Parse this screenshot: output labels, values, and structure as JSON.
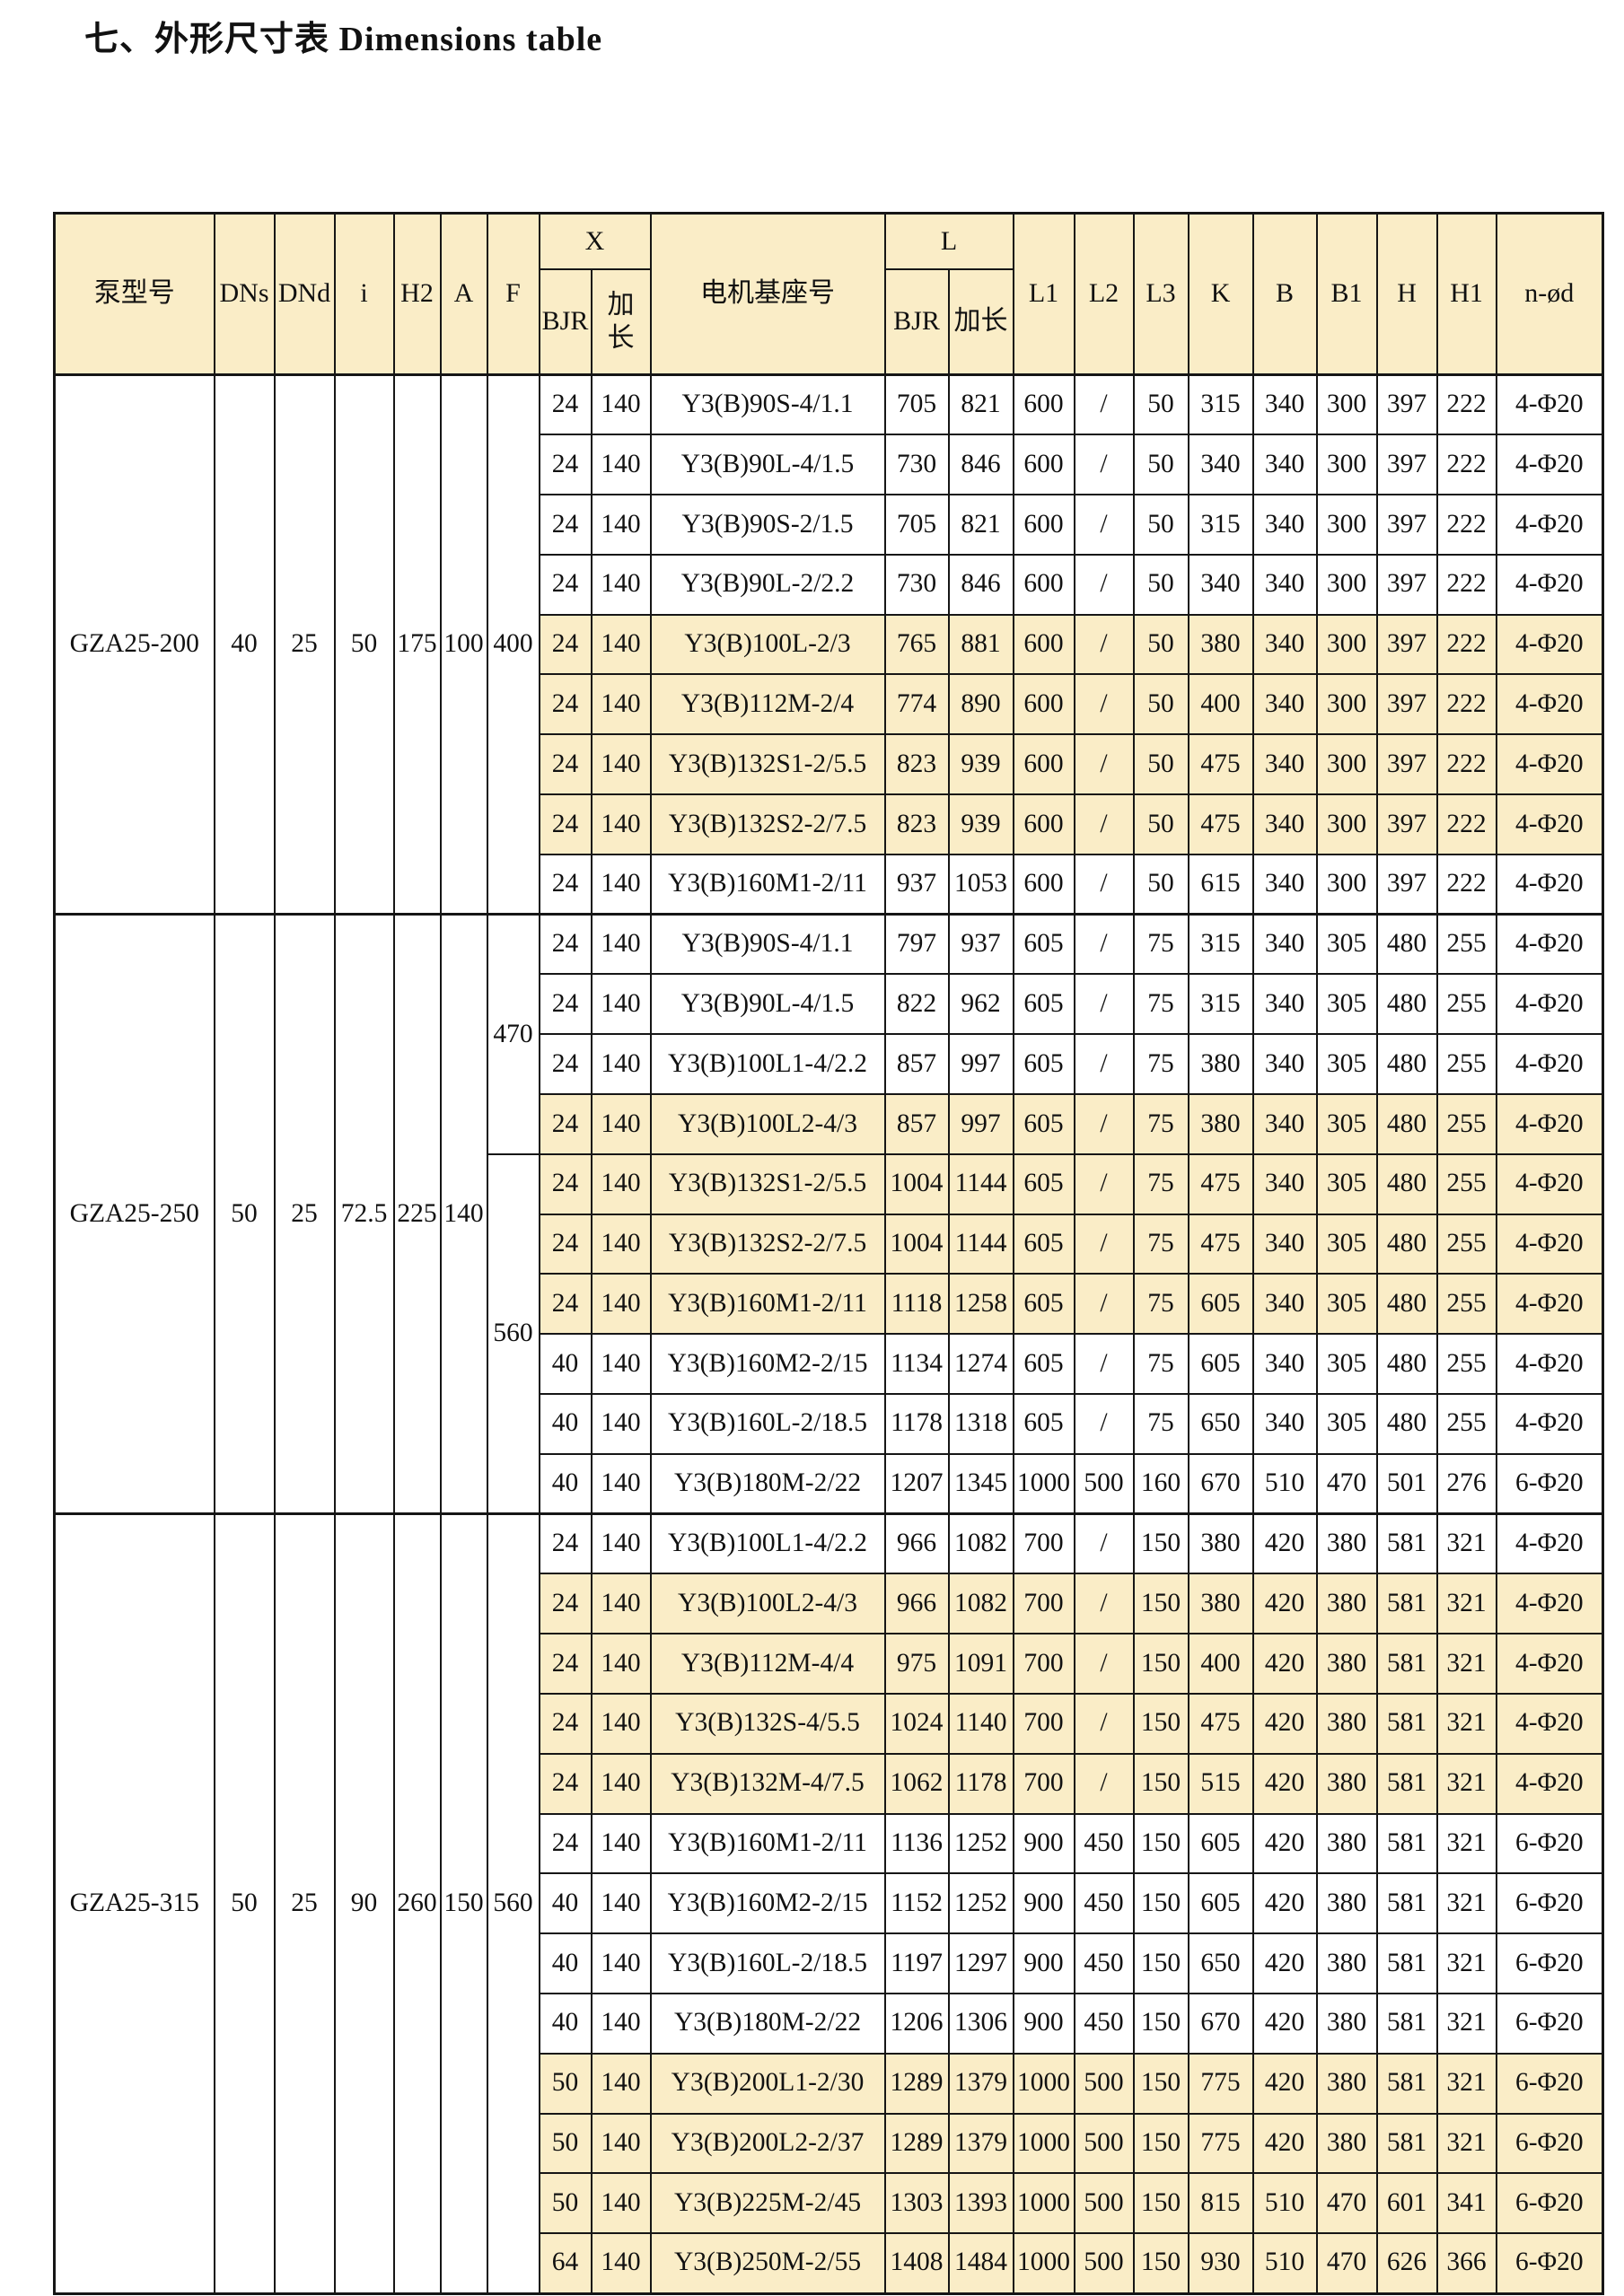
{
  "title": "七、外形尺寸表 Dimensions table",
  "colors": {
    "row_shade": "#FAEDC7",
    "header_bg": "#FAEDC7",
    "border": "#161616"
  },
  "table": {
    "headers": {
      "pump_model": "泵型号",
      "dns": "DNs",
      "dnd": "DNd",
      "i": "i",
      "h2": "H2",
      "a": "A",
      "f": "F",
      "x_group": "X",
      "bjr": "BJR",
      "jiachang": "加长",
      "motor_base": "电机基座号",
      "l_group": "L",
      "l1": "L1",
      "l2": "L2",
      "l3": "L3",
      "k": "K",
      "b": "B",
      "b1": "B1",
      "h": "H",
      "h1": "H1",
      "n_od": "n-ød"
    },
    "groups": [
      {
        "model": "GZA25-200",
        "dns": "40",
        "dnd": "25",
        "i": "50",
        "h2": "175",
        "a": "100",
        "f_cells": [
          {
            "value": "400",
            "span": 9
          }
        ],
        "rows": [
          {
            "x_bjr": "24",
            "x_ext": "140",
            "base": "Y3(B)90S-4/1.1",
            "l_bjr": "705",
            "l_ext": "821",
            "l1": "600",
            "l2": "/",
            "l3": "50",
            "k": "315",
            "b": "340",
            "b1": "300",
            "h": "397",
            "h1": "222",
            "n": "4-Φ20",
            "shaded": false
          },
          {
            "x_bjr": "24",
            "x_ext": "140",
            "base": "Y3(B)90L-4/1.5",
            "l_bjr": "730",
            "l_ext": "846",
            "l1": "600",
            "l2": "/",
            "l3": "50",
            "k": "340",
            "b": "340",
            "b1": "300",
            "h": "397",
            "h1": "222",
            "n": "4-Φ20",
            "shaded": false
          },
          {
            "x_bjr": "24",
            "x_ext": "140",
            "base": "Y3(B)90S-2/1.5",
            "l_bjr": "705",
            "l_ext": "821",
            "l1": "600",
            "l2": "/",
            "l3": "50",
            "k": "315",
            "b": "340",
            "b1": "300",
            "h": "397",
            "h1": "222",
            "n": "4-Φ20",
            "shaded": false
          },
          {
            "x_bjr": "24",
            "x_ext": "140",
            "base": "Y3(B)90L-2/2.2",
            "l_bjr": "730",
            "l_ext": "846",
            "l1": "600",
            "l2": "/",
            "l3": "50",
            "k": "340",
            "b": "340",
            "b1": "300",
            "h": "397",
            "h1": "222",
            "n": "4-Φ20",
            "shaded": false
          },
          {
            "x_bjr": "24",
            "x_ext": "140",
            "base": "Y3(B)100L-2/3",
            "l_bjr": "765",
            "l_ext": "881",
            "l1": "600",
            "l2": "/",
            "l3": "50",
            "k": "380",
            "b": "340",
            "b1": "300",
            "h": "397",
            "h1": "222",
            "n": "4-Φ20",
            "shaded": true
          },
          {
            "x_bjr": "24",
            "x_ext": "140",
            "base": "Y3(B)112M-2/4",
            "l_bjr": "774",
            "l_ext": "890",
            "l1": "600",
            "l2": "/",
            "l3": "50",
            "k": "400",
            "b": "340",
            "b1": "300",
            "h": "397",
            "h1": "222",
            "n": "4-Φ20",
            "shaded": true
          },
          {
            "x_bjr": "24",
            "x_ext": "140",
            "base": "Y3(B)132S1-2/5.5",
            "l_bjr": "823",
            "l_ext": "939",
            "l1": "600",
            "l2": "/",
            "l3": "50",
            "k": "475",
            "b": "340",
            "b1": "300",
            "h": "397",
            "h1": "222",
            "n": "4-Φ20",
            "shaded": true
          },
          {
            "x_bjr": "24",
            "x_ext": "140",
            "base": "Y3(B)132S2-2/7.5",
            "l_bjr": "823",
            "l_ext": "939",
            "l1": "600",
            "l2": "/",
            "l3": "50",
            "k": "475",
            "b": "340",
            "b1": "300",
            "h": "397",
            "h1": "222",
            "n": "4-Φ20",
            "shaded": true
          },
          {
            "x_bjr": "24",
            "x_ext": "140",
            "base": "Y3(B)160M1-2/11",
            "l_bjr": "937",
            "l_ext": "1053",
            "l1": "600",
            "l2": "/",
            "l3": "50",
            "k": "615",
            "b": "340",
            "b1": "300",
            "h": "397",
            "h1": "222",
            "n": "4-Φ20",
            "shaded": false
          }
        ]
      },
      {
        "model": "GZA25-250",
        "dns": "50",
        "dnd": "25",
        "i": "72.5",
        "h2": "225",
        "a": "140",
        "f_cells": [
          {
            "value": "470",
            "span": 4
          },
          {
            "value": "560",
            "span": 6
          }
        ],
        "rows": [
          {
            "x_bjr": "24",
            "x_ext": "140",
            "base": "Y3(B)90S-4/1.1",
            "l_bjr": "797",
            "l_ext": "937",
            "l1": "605",
            "l2": "/",
            "l3": "75",
            "k": "315",
            "b": "340",
            "b1": "305",
            "h": "480",
            "h1": "255",
            "n": "4-Φ20",
            "shaded": false
          },
          {
            "x_bjr": "24",
            "x_ext": "140",
            "base": "Y3(B)90L-4/1.5",
            "l_bjr": "822",
            "l_ext": "962",
            "l1": "605",
            "l2": "/",
            "l3": "75",
            "k": "315",
            "b": "340",
            "b1": "305",
            "h": "480",
            "h1": "255",
            "n": "4-Φ20",
            "shaded": false
          },
          {
            "x_bjr": "24",
            "x_ext": "140",
            "base": "Y3(B)100L1-4/2.2",
            "l_bjr": "857",
            "l_ext": "997",
            "l1": "605",
            "l2": "/",
            "l3": "75",
            "k": "380",
            "b": "340",
            "b1": "305",
            "h": "480",
            "h1": "255",
            "n": "4-Φ20",
            "shaded": false
          },
          {
            "x_bjr": "24",
            "x_ext": "140",
            "base": "Y3(B)100L2-4/3",
            "l_bjr": "857",
            "l_ext": "997",
            "l1": "605",
            "l2": "/",
            "l3": "75",
            "k": "380",
            "b": "340",
            "b1": "305",
            "h": "480",
            "h1": "255",
            "n": "4-Φ20",
            "shaded": true
          },
          {
            "x_bjr": "24",
            "x_ext": "140",
            "base": "Y3(B)132S1-2/5.5",
            "l_bjr": "1004",
            "l_ext": "1144",
            "l1": "605",
            "l2": "/",
            "l3": "75",
            "k": "475",
            "b": "340",
            "b1": "305",
            "h": "480",
            "h1": "255",
            "n": "4-Φ20",
            "shaded": true
          },
          {
            "x_bjr": "24",
            "x_ext": "140",
            "base": "Y3(B)132S2-2/7.5",
            "l_bjr": "1004",
            "l_ext": "1144",
            "l1": "605",
            "l2": "/",
            "l3": "75",
            "k": "475",
            "b": "340",
            "b1": "305",
            "h": "480",
            "h1": "255",
            "n": "4-Φ20",
            "shaded": true
          },
          {
            "x_bjr": "24",
            "x_ext": "140",
            "base": "Y3(B)160M1-2/11",
            "l_bjr": "1118",
            "l_ext": "1258",
            "l1": "605",
            "l2": "/",
            "l3": "75",
            "k": "605",
            "b": "340",
            "b1": "305",
            "h": "480",
            "h1": "255",
            "n": "4-Φ20",
            "shaded": true
          },
          {
            "x_bjr": "40",
            "x_ext": "140",
            "base": "Y3(B)160M2-2/15",
            "l_bjr": "1134",
            "l_ext": "1274",
            "l1": "605",
            "l2": "/",
            "l3": "75",
            "k": "605",
            "b": "340",
            "b1": "305",
            "h": "480",
            "h1": "255",
            "n": "4-Φ20",
            "shaded": false
          },
          {
            "x_bjr": "40",
            "x_ext": "140",
            "base": "Y3(B)160L-2/18.5",
            "l_bjr": "1178",
            "l_ext": "1318",
            "l1": "605",
            "l2": "/",
            "l3": "75",
            "k": "650",
            "b": "340",
            "b1": "305",
            "h": "480",
            "h1": "255",
            "n": "4-Φ20",
            "shaded": false
          },
          {
            "x_bjr": "40",
            "x_ext": "140",
            "base": "Y3(B)180M-2/22",
            "l_bjr": "1207",
            "l_ext": "1345",
            "l1": "1000",
            "l2": "500",
            "l3": "160",
            "k": "670",
            "b": "510",
            "b1": "470",
            "h": "501",
            "h1": "276",
            "n": "6-Φ20",
            "shaded": false
          }
        ]
      },
      {
        "model": "GZA25-315",
        "dns": "50",
        "dnd": "25",
        "i": "90",
        "h2": "260",
        "a": "150",
        "f_cells": [
          {
            "value": "560",
            "span": 13
          }
        ],
        "rows": [
          {
            "x_bjr": "24",
            "x_ext": "140",
            "base": "Y3(B)100L1-4/2.2",
            "l_bjr": "966",
            "l_ext": "1082",
            "l1": "700",
            "l2": "/",
            "l3": "150",
            "k": "380",
            "b": "420",
            "b1": "380",
            "h": "581",
            "h1": "321",
            "n": "4-Φ20",
            "shaded": false
          },
          {
            "x_bjr": "24",
            "x_ext": "140",
            "base": "Y3(B)100L2-4/3",
            "l_bjr": "966",
            "l_ext": "1082",
            "l1": "700",
            "l2": "/",
            "l3": "150",
            "k": "380",
            "b": "420",
            "b1": "380",
            "h": "581",
            "h1": "321",
            "n": "4-Φ20",
            "shaded": true
          },
          {
            "x_bjr": "24",
            "x_ext": "140",
            "base": "Y3(B)112M-4/4",
            "l_bjr": "975",
            "l_ext": "1091",
            "l1": "700",
            "l2": "/",
            "l3": "150",
            "k": "400",
            "b": "420",
            "b1": "380",
            "h": "581",
            "h1": "321",
            "n": "4-Φ20",
            "shaded": true
          },
          {
            "x_bjr": "24",
            "x_ext": "140",
            "base": "Y3(B)132S-4/5.5",
            "l_bjr": "1024",
            "l_ext": "1140",
            "l1": "700",
            "l2": "/",
            "l3": "150",
            "k": "475",
            "b": "420",
            "b1": "380",
            "h": "581",
            "h1": "321",
            "n": "4-Φ20",
            "shaded": true
          },
          {
            "x_bjr": "24",
            "x_ext": "140",
            "base": "Y3(B)132M-4/7.5",
            "l_bjr": "1062",
            "l_ext": "1178",
            "l1": "700",
            "l2": "/",
            "l3": "150",
            "k": "515",
            "b": "420",
            "b1": "380",
            "h": "581",
            "h1": "321",
            "n": "4-Φ20",
            "shaded": true
          },
          {
            "x_bjr": "24",
            "x_ext": "140",
            "base": "Y3(B)160M1-2/11",
            "l_bjr": "1136",
            "l_ext": "1252",
            "l1": "900",
            "l2": "450",
            "l3": "150",
            "k": "605",
            "b": "420",
            "b1": "380",
            "h": "581",
            "h1": "321",
            "n": "6-Φ20",
            "shaded": false
          },
          {
            "x_bjr": "40",
            "x_ext": "140",
            "base": "Y3(B)160M2-2/15",
            "l_bjr": "1152",
            "l_ext": "1252",
            "l1": "900",
            "l2": "450",
            "l3": "150",
            "k": "605",
            "b": "420",
            "b1": "380",
            "h": "581",
            "h1": "321",
            "n": "6-Φ20",
            "shaded": false
          },
          {
            "x_bjr": "40",
            "x_ext": "140",
            "base": "Y3(B)160L-2/18.5",
            "l_bjr": "1197",
            "l_ext": "1297",
            "l1": "900",
            "l2": "450",
            "l3": "150",
            "k": "650",
            "b": "420",
            "b1": "380",
            "h": "581",
            "h1": "321",
            "n": "6-Φ20",
            "shaded": false
          },
          {
            "x_bjr": "40",
            "x_ext": "140",
            "base": "Y3(B)180M-2/22",
            "l_bjr": "1206",
            "l_ext": "1306",
            "l1": "900",
            "l2": "450",
            "l3": "150",
            "k": "670",
            "b": "420",
            "b1": "380",
            "h": "581",
            "h1": "321",
            "n": "6-Φ20",
            "shaded": false
          },
          {
            "x_bjr": "50",
            "x_ext": "140",
            "base": "Y3(B)200L1-2/30",
            "l_bjr": "1289",
            "l_ext": "1379",
            "l1": "1000",
            "l2": "500",
            "l3": "150",
            "k": "775",
            "b": "420",
            "b1": "380",
            "h": "581",
            "h1": "321",
            "n": "6-Φ20",
            "shaded": true
          },
          {
            "x_bjr": "50",
            "x_ext": "140",
            "base": "Y3(B)200L2-2/37",
            "l_bjr": "1289",
            "l_ext": "1379",
            "l1": "1000",
            "l2": "500",
            "l3": "150",
            "k": "775",
            "b": "420",
            "b1": "380",
            "h": "581",
            "h1": "321",
            "n": "6-Φ20",
            "shaded": true
          },
          {
            "x_bjr": "50",
            "x_ext": "140",
            "base": "Y3(B)225M-2/45",
            "l_bjr": "1303",
            "l_ext": "1393",
            "l1": "1000",
            "l2": "500",
            "l3": "150",
            "k": "815",
            "b": "510",
            "b1": "470",
            "h": "601",
            "h1": "341",
            "n": "6-Φ20",
            "shaded": true
          },
          {
            "x_bjr": "64",
            "x_ext": "140",
            "base": "Y3(B)250M-2/55",
            "l_bjr": "1408",
            "l_ext": "1484",
            "l1": "1000",
            "l2": "500",
            "l3": "150",
            "k": "930",
            "b": "510",
            "b1": "470",
            "h": "626",
            "h1": "366",
            "n": "6-Φ20",
            "shaded": true
          }
        ]
      }
    ]
  }
}
